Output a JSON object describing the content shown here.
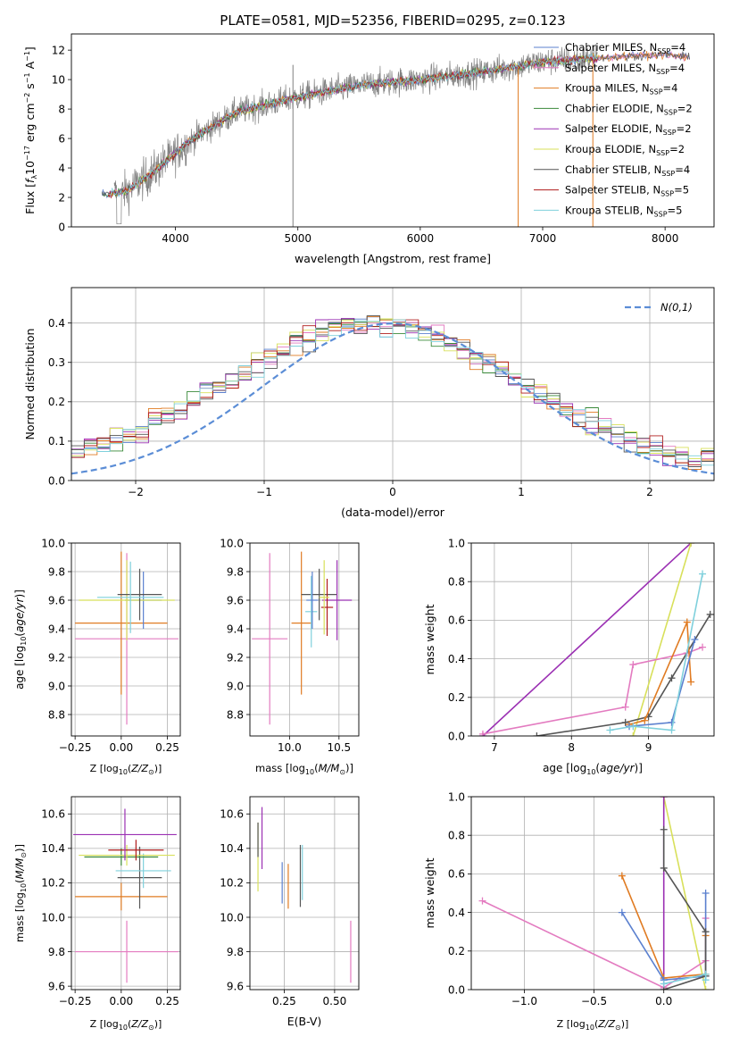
{
  "title": "PLATE=0581, MJD=52356, FIBERID=0295, z=0.123",
  "colors": {
    "Chabrier MILES": "#5b80cf",
    "Salpeter MILES": "#e37bc0",
    "Kroupa MILES": "#e07b22",
    "Chabrier ELODIE": "#3a8a3a",
    "Salpeter ELODIE": "#9b30b3",
    "Kroupa ELODIE": "#d8e05a",
    "Chabrier STELIB": "#555555",
    "Salpeter STELIB": "#b01c1c",
    "Kroupa STELIB": "#7fd0dc",
    "data": "#808080",
    "normal": "#5b8dd6"
  },
  "chart_data": [
    {
      "id": "spectrum",
      "type": "line",
      "xlabel": "wavelength [Angstrom, rest frame]",
      "ylabel": "Flux [f_λ 10^-17 erg cm^-2 s^-1 A^-1]",
      "xlim": [
        3150,
        8400
      ],
      "ylim": [
        0,
        13.1
      ],
      "xticks": [
        4000,
        5000,
        6000,
        7000,
        8000
      ],
      "yticks": [
        0,
        2,
        4,
        6,
        8,
        10,
        12
      ],
      "legend_position": "upper-right",
      "continuum": {
        "x": [
          3400,
          3500,
          3600,
          3700,
          3800,
          3900,
          4000,
          4100,
          4200,
          4300,
          4400,
          4500,
          4700,
          5000,
          5300,
          5600,
          6000,
          6500,
          7000,
          7500,
          8000,
          8200
        ],
        "y": [
          2.2,
          2.3,
          2.4,
          3.0,
          3.6,
          4.3,
          5.0,
          5.7,
          6.3,
          6.8,
          7.3,
          7.8,
          8.2,
          8.8,
          9.3,
          9.7,
          10.0,
          10.5,
          11.2,
          11.5,
          11.7,
          11.5
        ]
      },
      "series": [
        {
          "name": "Chabrier MILES",
          "n_ssp": "4"
        },
        {
          "name": "Salpeter MILES",
          "n_ssp": "4"
        },
        {
          "name": "Kroupa MILES",
          "n_ssp": "4"
        },
        {
          "name": "Chabrier ELODIE",
          "n_ssp": "2"
        },
        {
          "name": "Salpeter ELODIE",
          "n_ssp": "2"
        },
        {
          "name": "Kroupa ELODIE",
          "n_ssp": "2"
        },
        {
          "name": "Chabrier STELIB",
          "n_ssp": "4"
        },
        {
          "name": "Salpeter STELIB",
          "n_ssp": "5"
        },
        {
          "name": "Kroupa STELIB",
          "n_ssp": "5"
        }
      ]
    },
    {
      "id": "residuals",
      "type": "line",
      "xlabel": "(data-model)/error",
      "ylabel": "Normed distribution",
      "xlim": [
        -2.5,
        2.5
      ],
      "ylim": [
        0,
        0.49
      ],
      "xticks": [
        -2,
        -1,
        0,
        1,
        2
      ],
      "yticks": [
        0.0,
        0.1,
        0.2,
        0.3,
        0.4
      ],
      "grid": true,
      "curve_label": "N(0,1)",
      "legend_position": "upper-right",
      "bin_width": 0.1
    },
    {
      "id": "age_vs_Z",
      "type": "scatter",
      "xlabel": "Z [log10(Z/Z⊙)]",
      "ylabel": "age [log10(age/yr)]",
      "xlim": [
        -0.27,
        0.32
      ],
      "ylim": [
        8.65,
        10.0
      ],
      "xticks": [
        -0.25,
        0.0,
        0.25
      ],
      "yticks": [
        8.8,
        9.0,
        9.2,
        9.4,
        9.6,
        9.8,
        10.0
      ],
      "grid": true,
      "points": [
        {
          "series": "Salpeter MILES",
          "x": 0.03,
          "y": 9.33,
          "xerr": 0.28,
          "yerr": 0.6
        },
        {
          "series": "Kroupa MILES",
          "x": 0.0,
          "y": 9.44,
          "xerr": 0.25,
          "yerr": 0.5
        },
        {
          "series": "Chabrier MILES",
          "x": 0.12,
          "y": 9.6,
          "xerr": 0.1,
          "yerr": 0.2
        },
        {
          "series": "Kroupa ELODIE",
          "x": 0.03,
          "y": 9.6,
          "xerr": 0.26,
          "yerr": 0.28
        },
        {
          "series": "Chabrier STELIB",
          "x": 0.1,
          "y": 9.64,
          "xerr": 0.12,
          "yerr": 0.18
        },
        {
          "series": "Kroupa STELIB",
          "x": 0.05,
          "y": 9.62,
          "xerr": 0.18,
          "yerr": 0.25
        }
      ]
    },
    {
      "id": "age_vs_mass",
      "type": "scatter",
      "xlabel": "mass [log10(M/M⊙)]",
      "ylabel": "",
      "xlim": [
        9.6,
        10.7
      ],
      "ylim": [
        8.65,
        10.0
      ],
      "xticks": [
        10.0,
        10.5
      ],
      "yticks": [
        8.8,
        9.0,
        9.2,
        9.4,
        9.6,
        9.8,
        10.0
      ],
      "grid": true,
      "points": [
        {
          "series": "Salpeter MILES",
          "x": 9.8,
          "y": 9.33,
          "xerr": 0.18,
          "yerr": 0.6
        },
        {
          "series": "Kroupa MILES",
          "x": 10.12,
          "y": 9.44,
          "xerr": 0.1,
          "yerr": 0.5
        },
        {
          "series": "Chabrier STELIB",
          "x": 10.3,
          "y": 9.64,
          "xerr": 0.18,
          "yerr": 0.18
        },
        {
          "series": "Salpeter ELODIE",
          "x": 10.48,
          "y": 9.6,
          "xerr": 0.15,
          "yerr": 0.28
        },
        {
          "series": "Salpeter STELIB",
          "x": 10.38,
          "y": 9.55,
          "xerr": 0.06,
          "yerr": 0.2
        },
        {
          "series": "Kroupa ELODIE",
          "x": 10.35,
          "y": 9.62,
          "xerr": 0.05,
          "yerr": 0.26
        },
        {
          "series": "Kroupa STELIB",
          "x": 10.22,
          "y": 9.52,
          "xerr": 0.06,
          "yerr": 0.25
        },
        {
          "series": "Chabrier MILES",
          "x": 10.23,
          "y": 9.6,
          "xerr": 0.06,
          "yerr": 0.2
        }
      ]
    },
    {
      "id": "weight_vs_age",
      "type": "line",
      "xlabel": "age [log10(age/yr)]",
      "ylabel": "mass weight",
      "xlim": [
        6.7,
        9.85
      ],
      "ylim": [
        0,
        1.0
      ],
      "xticks": [
        7,
        8,
        9
      ],
      "yticks": [
        0.0,
        0.2,
        0.4,
        0.6,
        0.8,
        1.0
      ],
      "grid": true,
      "series": [
        {
          "name": "Salpeter ELODIE",
          "x": [
            6.85,
            9.55
          ],
          "y": [
            0.0,
            1.0
          ]
        },
        {
          "name": "Kroupa ELODIE",
          "x": [
            8.8,
            9.55
          ],
          "y": [
            0.0,
            1.0
          ]
        },
        {
          "name": "Salpeter MILES",
          "x": [
            6.85,
            8.7,
            8.8,
            9.5,
            9.7
          ],
          "y": [
            0.01,
            0.15,
            0.37,
            0.43,
            0.46
          ]
        },
        {
          "name": "Chabrier STELIB",
          "x": [
            7.55,
            8.7,
            9.0,
            9.3,
            9.8
          ],
          "y": [
            0.0,
            0.07,
            0.1,
            0.3,
            0.63
          ]
        },
        {
          "name": "Kroupa MILES",
          "x": [
            8.75,
            8.95,
            9.5,
            9.55
          ],
          "y": [
            0.06,
            0.08,
            0.59,
            0.28
          ]
        },
        {
          "name": "Chabrier MILES",
          "x": [
            8.75,
            9.3,
            9.6
          ],
          "y": [
            0.05,
            0.07,
            0.5
          ]
        },
        {
          "name": "Kroupa STELIB",
          "x": [
            8.5,
            8.8,
            9.3,
            9.7
          ],
          "y": [
            0.03,
            0.05,
            0.03,
            0.84
          ]
        }
      ]
    },
    {
      "id": "mass_vs_Z",
      "type": "scatter",
      "xlabel": "Z [log10(Z/Z⊙)]",
      "ylabel": "mass [log10(M/M⊙)]",
      "xlim": [
        -0.27,
        0.32
      ],
      "ylim": [
        9.58,
        10.7
      ],
      "xticks": [
        -0.25,
        0.0,
        0.25
      ],
      "yticks": [
        9.6,
        9.8,
        10.0,
        10.2,
        10.4,
        10.6
      ],
      "grid": true,
      "points": [
        {
          "series": "Salpeter MILES",
          "x": 0.03,
          "y": 9.8,
          "xerr": 0.28,
          "yerr": 0.18
        },
        {
          "series": "Kroupa MILES",
          "x": 0.0,
          "y": 10.12,
          "xerr": 0.25,
          "yerr": 0.08
        },
        {
          "series": "Chabrier STELIB",
          "x": 0.1,
          "y": 10.23,
          "xerr": 0.12,
          "yerr": 0.18
        },
        {
          "series": "Kroupa STELIB",
          "x": 0.12,
          "y": 10.27,
          "xerr": 0.15,
          "yerr": 0.1
        },
        {
          "series": "Chabrier ELODIE",
          "x": 0.0,
          "y": 10.35,
          "xerr": 0.2,
          "yerr": 0.05
        },
        {
          "series": "Kroupa ELODIE",
          "x": 0.03,
          "y": 10.36,
          "xerr": 0.26,
          "yerr": 0.06
        },
        {
          "series": "Salpeter STELIB",
          "x": 0.08,
          "y": 10.39,
          "xerr": 0.15,
          "yerr": 0.06
        },
        {
          "series": "Salpeter ELODIE",
          "x": 0.02,
          "y": 10.48,
          "xerr": 0.28,
          "yerr": 0.15
        }
      ]
    },
    {
      "id": "mass_vs_EBV",
      "type": "scatter",
      "xlabel": "E(B-V)",
      "ylabel": "",
      "xlim": [
        0.08,
        0.62
      ],
      "ylim": [
        9.58,
        10.7
      ],
      "xticks": [
        0.25,
        0.5
      ],
      "yticks": [
        9.6,
        9.8,
        10.0,
        10.2,
        10.4,
        10.6
      ],
      "grid": true,
      "points": [
        {
          "series": "Kroupa ELODIE",
          "x": 0.12,
          "y": 10.35,
          "xerr": 0,
          "yerr": 0.2
        },
        {
          "series": "Chabrier STELIB",
          "x": 0.12,
          "y": 10.45,
          "xerr": 0,
          "yerr": 0.1
        },
        {
          "series": "Salpeter ELODIE",
          "x": 0.14,
          "y": 10.46,
          "xerr": 0,
          "yerr": 0.18
        },
        {
          "series": "Chabrier MILES",
          "x": 0.24,
          "y": 10.2,
          "xerr": 0,
          "yerr": 0.12
        },
        {
          "series": "Kroupa MILES",
          "x": 0.27,
          "y": 10.18,
          "xerr": 0,
          "yerr": 0.13
        },
        {
          "series": "Chabrier STELIB",
          "x": 0.33,
          "y": 10.24,
          "xerr": 0,
          "yerr": 0.18
        },
        {
          "series": "Kroupa STELIB",
          "x": 0.34,
          "y": 10.26,
          "xerr": 0,
          "yerr": 0.16
        },
        {
          "series": "Salpeter MILES",
          "x": 0.58,
          "y": 9.8,
          "xerr": 0,
          "yerr": 0.18
        }
      ]
    },
    {
      "id": "weight_vs_Z",
      "type": "line",
      "xlabel": "Z [log10(Z/Z⊙)]",
      "ylabel": "mass weight",
      "xlim": [
        -1.38,
        0.36
      ],
      "ylim": [
        0,
        1.0
      ],
      "xticks": [
        -1.0,
        -0.5,
        0.0
      ],
      "yticks": [
        0.0,
        0.2,
        0.4,
        0.6,
        0.8,
        1.0
      ],
      "grid": true,
      "series": [
        {
          "name": "Kroupa ELODIE",
          "x": [
            0.0,
            0.3
          ],
          "y": [
            1.0,
            0.0
          ]
        },
        {
          "name": "Salpeter ELODIE",
          "x": [
            0.0,
            0.0
          ],
          "y": [
            1.0,
            0.0
          ]
        },
        {
          "name": "Salpeter MILES",
          "x": [
            -1.3,
            0.0,
            0.3,
            0.3
          ],
          "y": [
            0.46,
            0.01,
            0.15,
            0.37
          ]
        },
        {
          "name": "Kroupa MILES",
          "x": [
            -0.3,
            0.0,
            0.3,
            0.3
          ],
          "y": [
            0.59,
            0.06,
            0.08,
            0.28
          ]
        },
        {
          "name": "Chabrier MILES",
          "x": [
            -0.3,
            0.0,
            0.3,
            0.3
          ],
          "y": [
            0.4,
            0.05,
            0.07,
            0.5
          ]
        },
        {
          "name": "Chabrier STELIB",
          "x": [
            0.0,
            0.0,
            0.3,
            0.3,
            0.0
          ],
          "y": [
            0.83,
            0.63,
            0.3,
            0.07,
            0.0
          ]
        },
        {
          "name": "Kroupa STELIB",
          "x": [
            0.0,
            0.3,
            0.3
          ],
          "y": [
            0.03,
            0.08,
            0.05
          ]
        }
      ]
    }
  ]
}
